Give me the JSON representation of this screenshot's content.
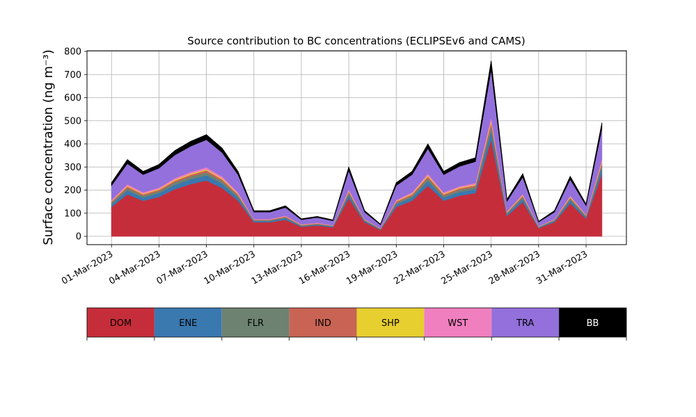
{
  "chart_data": {
    "type": "stacked_area",
    "title": "Source contribution to BC concentrations (ECLIPSEv6 and CAMS)",
    "ylabel": "Surface concentration (ng m⁻³)",
    "x": [
      "01-Mar-2023",
      "02-Mar-2023",
      "03-Mar-2023",
      "04-Mar-2023",
      "05-Mar-2023",
      "06-Mar-2023",
      "07-Mar-2023",
      "08-Mar-2023",
      "09-Mar-2023",
      "10-Mar-2023",
      "11-Mar-2023",
      "12-Mar-2023",
      "13-Mar-2023",
      "14-Mar-2023",
      "15-Mar-2023",
      "16-Mar-2023",
      "17-Mar-2023",
      "18-Mar-2023",
      "19-Mar-2023",
      "20-Mar-2023",
      "21-Mar-2023",
      "22-Mar-2023",
      "23-Mar-2023",
      "24-Mar-2023",
      "25-Mar-2023",
      "26-Mar-2023",
      "27-Mar-2023",
      "28-Mar-2023",
      "29-Mar-2023",
      "30-Mar-2023",
      "31-Mar-2023",
      "01-Apr-2023"
    ],
    "series": [
      {
        "name": "DOM",
        "color": "#c62d3a",
        "values": [
          127,
          182,
          154,
          171,
          204,
          226,
          242,
          209,
          154,
          61,
          61,
          72,
          41,
          47,
          39,
          165,
          61,
          28,
          127,
          154,
          220,
          154,
          176,
          187,
          418,
          88,
          149,
          36,
          61,
          143,
          77,
          270
        ]
      },
      {
        "name": "ENE",
        "color": "#3a78b0",
        "values": [
          12,
          17,
          14,
          16,
          19,
          21,
          22,
          19,
          14,
          6,
          6,
          7,
          4,
          4,
          4,
          15,
          6,
          3,
          12,
          14,
          20,
          14,
          16,
          17,
          38,
          8,
          14,
          3,
          6,
          13,
          7,
          25
        ]
      },
      {
        "name": "FLR",
        "color": "#6e8272",
        "values": [
          7,
          10,
          8,
          9,
          11,
          12,
          13,
          11,
          8,
          3,
          3,
          4,
          2,
          3,
          2,
          9,
          3,
          2,
          7,
          8,
          12,
          8,
          10,
          10,
          23,
          5,
          8,
          2,
          3,
          8,
          4,
          15
        ]
      },
      {
        "name": "IND",
        "color": "#c96455",
        "values": [
          5,
          7,
          6,
          6,
          7,
          8,
          9,
          8,
          6,
          2,
          2,
          3,
          2,
          2,
          1,
          6,
          2,
          1,
          5,
          6,
          8,
          6,
          6,
          7,
          15,
          3,
          5,
          1,
          2,
          5,
          3,
          10
        ]
      },
      {
        "name": "SHP",
        "color": "#e6cf2e",
        "values": [
          2,
          3,
          3,
          3,
          4,
          4,
          4,
          4,
          3,
          1,
          1,
          1,
          1,
          1,
          1,
          3,
          1,
          1,
          2,
          3,
          4,
          3,
          3,
          3,
          8,
          2,
          3,
          1,
          1,
          3,
          1,
          5
        ]
      },
      {
        "name": "WST",
        "color": "#f07fbf",
        "values": [
          5,
          7,
          6,
          6,
          7,
          8,
          9,
          8,
          6,
          2,
          2,
          3,
          2,
          2,
          1,
          6,
          2,
          1,
          5,
          6,
          8,
          6,
          6,
          7,
          15,
          3,
          5,
          1,
          2,
          5,
          3,
          10
        ]
      },
      {
        "name": "TRA",
        "color": "#9370db",
        "values": [
          62,
          89,
          76,
          84,
          100,
          111,
          119,
          103,
          76,
          30,
          30,
          35,
          20,
          23,
          19,
          81,
          30,
          14,
          62,
          76,
          108,
          76,
          86,
          92,
          205,
          43,
          73,
          18,
          30,
          70,
          38,
          132
        ]
      },
      {
        "name": "BB",
        "color": "#000000",
        "values": [
          12,
          17,
          14,
          16,
          19,
          21,
          22,
          19,
          14,
          6,
          6,
          7,
          4,
          4,
          4,
          15,
          6,
          3,
          12,
          14,
          20,
          14,
          16,
          17,
          38,
          8,
          14,
          3,
          6,
          13,
          7,
          25
        ]
      }
    ],
    "ylim": [
      -36,
      803
    ],
    "yticks": [
      0,
      100,
      200,
      300,
      400,
      500,
      600,
      700,
      800
    ],
    "xticks": [
      "01-Mar-2023",
      "04-Mar-2023",
      "07-Mar-2023",
      "10-Mar-2023",
      "13-Mar-2023",
      "16-Mar-2023",
      "19-Mar-2023",
      "22-Mar-2023",
      "25-Mar-2023",
      "28-Mar-2023",
      "31-Mar-2023"
    ],
    "grid": true,
    "legend": "bottom"
  }
}
